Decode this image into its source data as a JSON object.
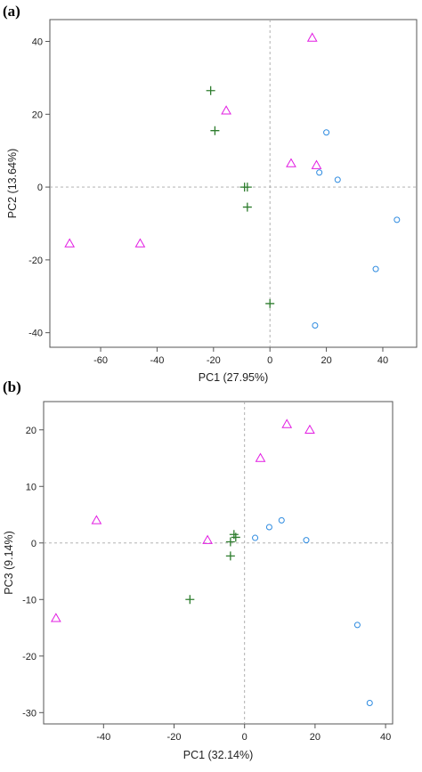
{
  "chart_data": [
    {
      "type": "scatter",
      "panel_label": "(a)",
      "xlabel": "PC1 (27.95%)",
      "ylabel": "PC2 (13.64%)",
      "xlim": [
        -78,
        52
      ],
      "ylim": [
        -44,
        46
      ],
      "xticks": [
        -60,
        -40,
        -20,
        0,
        20,
        40
      ],
      "yticks": [
        -40,
        -20,
        0,
        20,
        40
      ],
      "zero_lines": true,
      "grid": false,
      "colors": {
        "plus": "#2e7d2e",
        "triangle": "#e21ce2",
        "circle": "#2e8be0"
      },
      "series": [
        {
          "marker": "plus",
          "color": "#2e7d2e",
          "points": [
            [
              -21,
              26.5
            ],
            [
              -19.5,
              15.5
            ],
            [
              -9,
              0
            ],
            [
              -8,
              0
            ],
            [
              -8,
              -5.5
            ],
            [
              0,
              -32
            ]
          ]
        },
        {
          "marker": "triangle",
          "color": "#e21ce2",
          "points": [
            [
              15,
              41
            ],
            [
              -15.5,
              21
            ],
            [
              7.5,
              6.5
            ],
            [
              16.5,
              6
            ],
            [
              -71,
              -15.5
            ],
            [
              -46,
              -15.5
            ]
          ]
        },
        {
          "marker": "circle",
          "color": "#2e8be0",
          "points": [
            [
              20,
              15
            ],
            [
              17.5,
              4
            ],
            [
              24,
              2
            ],
            [
              45,
              -9
            ],
            [
              37.5,
              -22.5
            ],
            [
              16,
              -38
            ]
          ]
        }
      ]
    },
    {
      "type": "scatter",
      "panel_label": "(b)",
      "xlabel": "PC1 (32.14%)",
      "ylabel": "PC3 (9.14%)",
      "xlim": [
        -57,
        42
      ],
      "ylim": [
        -32,
        25
      ],
      "xticks": [
        -40,
        -20,
        0,
        20,
        40
      ],
      "yticks": [
        -30,
        -20,
        -10,
        0,
        10,
        20
      ],
      "zero_lines": true,
      "grid": false,
      "colors": {
        "plus": "#2e7d2e",
        "triangle": "#e21ce2",
        "circle": "#2e8be0"
      },
      "series": [
        {
          "marker": "plus",
          "color": "#2e7d2e",
          "points": [
            [
              -3,
              1.5
            ],
            [
              -2.5,
              1
            ],
            [
              -4,
              0.2
            ],
            [
              -4,
              -2.3
            ],
            [
              -15.5,
              -10
            ]
          ]
        },
        {
          "marker": "triangle",
          "color": "#e21ce2",
          "points": [
            [
              12,
              21
            ],
            [
              18.5,
              20
            ],
            [
              4.5,
              15
            ],
            [
              -42,
              4
            ],
            [
              -10.5,
              0.5
            ],
            [
              -53.5,
              -13.3
            ]
          ]
        },
        {
          "marker": "circle",
          "color": "#2e8be0",
          "points": [
            [
              10.5,
              4
            ],
            [
              7,
              2.8
            ],
            [
              3,
              0.9
            ],
            [
              17.5,
              0.5
            ],
            [
              32,
              -14.5
            ],
            [
              35.5,
              -28.3
            ]
          ]
        }
      ]
    }
  ]
}
